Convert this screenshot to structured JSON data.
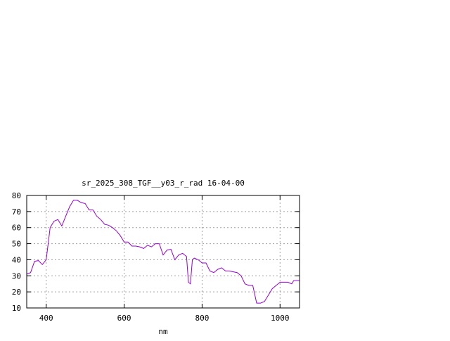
{
  "chart_data": {
    "type": "line",
    "title": "sr_2025_308_TGF__y03_r_rad 16-04-00",
    "xlabel": "nm",
    "ylabel": "",
    "xlim": [
      350,
      1050
    ],
    "ylim": [
      10,
      80
    ],
    "xticks": [
      400,
      600,
      800,
      1000
    ],
    "yticks": [
      10,
      20,
      30,
      40,
      50,
      60,
      70,
      80
    ],
    "grid": true,
    "line_color": "#9400d3",
    "series": [
      {
        "x": [
          350,
          360,
          370,
          380,
          390,
          400,
          410,
          420,
          430,
          440,
          450,
          460,
          470,
          480,
          490,
          500,
          510,
          520,
          530,
          540,
          550,
          560,
          570,
          580,
          590,
          600,
          610,
          620,
          630,
          640,
          650,
          660,
          670,
          680,
          690,
          700,
          710,
          720,
          730,
          740,
          750,
          760,
          765,
          770,
          775,
          780,
          790,
          800,
          810,
          820,
          830,
          840,
          850,
          860,
          870,
          880,
          890,
          900,
          910,
          920,
          930,
          940,
          950,
          960,
          970,
          980,
          990,
          1000,
          1010,
          1020,
          1030,
          1035,
          1040,
          1050
        ],
        "y": [
          31,
          32,
          39,
          39.5,
          37,
          40,
          60,
          64,
          65,
          61,
          67,
          73,
          77,
          77,
          75.5,
          75,
          71,
          71,
          67,
          65,
          62,
          61.5,
          60,
          58,
          55,
          51,
          51,
          48.5,
          48.5,
          48,
          47,
          49,
          48,
          50,
          50,
          43,
          46,
          46.5,
          40,
          43,
          44,
          42,
          26,
          25,
          40,
          41,
          40,
          38,
          38,
          33,
          32,
          34,
          35,
          33,
          33,
          32.5,
          32,
          30,
          25,
          24,
          24,
          13,
          13,
          14,
          18,
          22,
          24,
          26,
          26,
          26,
          25,
          27,
          27,
          27
        ]
      }
    ]
  }
}
